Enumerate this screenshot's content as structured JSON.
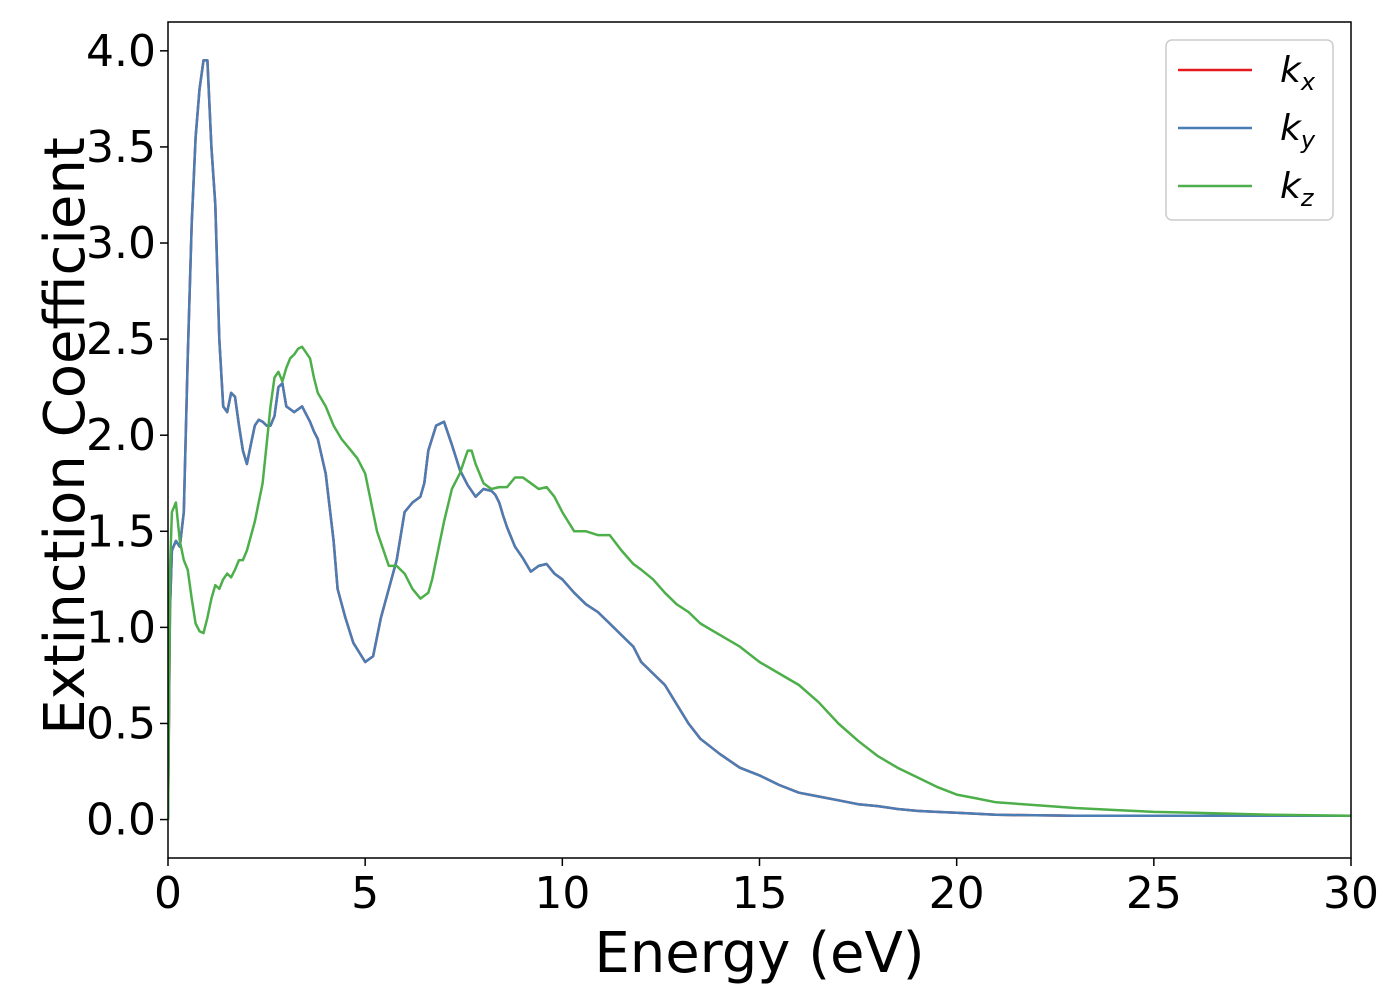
{
  "chart_data": {
    "type": "line",
    "xlabel": "Energy (eV)",
    "ylabel": "Extinction Coefficient",
    "xlim": [
      0,
      30
    ],
    "ylim": [
      -0.2,
      4.15
    ],
    "xticks": [
      0,
      5,
      10,
      15,
      20,
      25,
      30
    ],
    "xtick_labels": [
      "0",
      "5",
      "10",
      "15",
      "20",
      "25",
      "30"
    ],
    "yticks": [
      0.0,
      0.5,
      1.0,
      1.5,
      2.0,
      2.5,
      3.0,
      3.5,
      4.0
    ],
    "ytick_labels": [
      "0.0",
      "0.5",
      "1.0",
      "1.5",
      "2.0",
      "2.5",
      "3.0",
      "3.5",
      "4.0"
    ],
    "grid": false,
    "legend_position": "top-right",
    "series": [
      {
        "name": "k_x",
        "legend_base": "k",
        "legend_sub": "x",
        "color": "#e41a1c",
        "x": [
          0,
          0.05,
          0.1,
          0.2,
          0.3,
          0.4,
          0.5,
          0.6,
          0.7,
          0.8,
          0.9,
          1.0,
          1.1,
          1.2,
          1.3,
          1.4,
          1.5,
          1.6,
          1.7,
          1.8,
          1.9,
          2.0,
          2.1,
          2.2,
          2.3,
          2.4,
          2.5,
          2.6,
          2.7,
          2.8,
          2.9,
          3.0,
          3.2,
          3.4,
          3.6,
          3.7,
          3.8,
          4.0,
          4.2,
          4.3,
          4.5,
          4.7,
          5.0,
          5.2,
          5.4,
          5.6,
          5.8,
          6.0,
          6.2,
          6.4,
          6.5,
          6.6,
          6.8,
          7.0,
          7.2,
          7.4,
          7.6,
          7.8,
          8.0,
          8.2,
          8.3,
          8.4,
          8.5,
          8.6,
          8.8,
          9.0,
          9.2,
          9.4,
          9.6,
          9.8,
          10.0,
          10.3,
          10.6,
          10.9,
          11.2,
          11.5,
          11.8,
          12.0,
          12.3,
          12.6,
          12.9,
          13.2,
          13.5,
          14.0,
          14.5,
          15.0,
          15.5,
          16.0,
          16.5,
          17.0,
          17.5,
          18.0,
          18.5,
          19.0,
          19.5,
          20.0,
          20.5,
          21.0,
          22.0,
          23.0,
          24.0,
          25.0,
          26.0,
          27.0,
          28.0,
          29.0,
          30.0
        ],
        "y": [
          0,
          1.1,
          1.4,
          1.45,
          1.42,
          1.6,
          2.4,
          3.1,
          3.55,
          3.8,
          3.95,
          3.95,
          3.5,
          3.2,
          2.5,
          2.15,
          2.12,
          2.22,
          2.2,
          2.05,
          1.92,
          1.85,
          1.95,
          2.05,
          2.08,
          2.07,
          2.05,
          2.05,
          2.1,
          2.25,
          2.27,
          2.15,
          2.12,
          2.15,
          2.07,
          2.02,
          1.98,
          1.8,
          1.45,
          1.2,
          1.05,
          0.92,
          0.82,
          0.85,
          1.05,
          1.2,
          1.35,
          1.6,
          1.65,
          1.68,
          1.75,
          1.92,
          2.05,
          2.07,
          1.95,
          1.82,
          1.74,
          1.68,
          1.72,
          1.71,
          1.69,
          1.65,
          1.58,
          1.52,
          1.42,
          1.36,
          1.29,
          1.32,
          1.33,
          1.28,
          1.25,
          1.18,
          1.12,
          1.08,
          1.02,
          0.96,
          0.9,
          0.82,
          0.76,
          0.7,
          0.6,
          0.5,
          0.42,
          0.34,
          0.27,
          0.23,
          0.18,
          0.14,
          0.12,
          0.1,
          0.08,
          0.07,
          0.055,
          0.045,
          0.04,
          0.035,
          0.03,
          0.025,
          0.022,
          0.02,
          0.02,
          0.02,
          0.02,
          0.02,
          0.02,
          0.02,
          0.02
        ]
      },
      {
        "name": "k_y",
        "legend_base": "k",
        "legend_sub": "y",
        "color": "#4a7db3",
        "x": [
          0,
          0.05,
          0.1,
          0.2,
          0.3,
          0.4,
          0.5,
          0.6,
          0.7,
          0.8,
          0.9,
          1.0,
          1.1,
          1.2,
          1.3,
          1.4,
          1.5,
          1.6,
          1.7,
          1.8,
          1.9,
          2.0,
          2.1,
          2.2,
          2.3,
          2.4,
          2.5,
          2.6,
          2.7,
          2.8,
          2.9,
          3.0,
          3.2,
          3.4,
          3.6,
          3.7,
          3.8,
          4.0,
          4.2,
          4.3,
          4.5,
          4.7,
          5.0,
          5.2,
          5.4,
          5.6,
          5.8,
          6.0,
          6.2,
          6.4,
          6.5,
          6.6,
          6.8,
          7.0,
          7.2,
          7.4,
          7.6,
          7.8,
          8.0,
          8.2,
          8.3,
          8.4,
          8.5,
          8.6,
          8.8,
          9.0,
          9.2,
          9.4,
          9.6,
          9.8,
          10.0,
          10.3,
          10.6,
          10.9,
          11.2,
          11.5,
          11.8,
          12.0,
          12.3,
          12.6,
          12.9,
          13.2,
          13.5,
          14.0,
          14.5,
          15.0,
          15.5,
          16.0,
          16.5,
          17.0,
          17.5,
          18.0,
          18.5,
          19.0,
          19.5,
          20.0,
          20.5,
          21.0,
          22.0,
          23.0,
          24.0,
          25.0,
          26.0,
          27.0,
          28.0,
          29.0,
          30.0
        ],
        "y": [
          0,
          1.1,
          1.4,
          1.45,
          1.42,
          1.6,
          2.4,
          3.1,
          3.55,
          3.8,
          3.95,
          3.95,
          3.5,
          3.2,
          2.5,
          2.15,
          2.12,
          2.22,
          2.2,
          2.05,
          1.92,
          1.85,
          1.95,
          2.05,
          2.08,
          2.07,
          2.05,
          2.05,
          2.1,
          2.25,
          2.27,
          2.15,
          2.12,
          2.15,
          2.07,
          2.02,
          1.98,
          1.8,
          1.45,
          1.2,
          1.05,
          0.92,
          0.82,
          0.85,
          1.05,
          1.2,
          1.35,
          1.6,
          1.65,
          1.68,
          1.75,
          1.92,
          2.05,
          2.07,
          1.95,
          1.82,
          1.74,
          1.68,
          1.72,
          1.71,
          1.69,
          1.65,
          1.58,
          1.52,
          1.42,
          1.36,
          1.29,
          1.32,
          1.33,
          1.28,
          1.25,
          1.18,
          1.12,
          1.08,
          1.02,
          0.96,
          0.9,
          0.82,
          0.76,
          0.7,
          0.6,
          0.5,
          0.42,
          0.34,
          0.27,
          0.23,
          0.18,
          0.14,
          0.12,
          0.1,
          0.08,
          0.07,
          0.055,
          0.045,
          0.04,
          0.035,
          0.03,
          0.025,
          0.022,
          0.02,
          0.02,
          0.02,
          0.02,
          0.02,
          0.02,
          0.02,
          0.02
        ]
      },
      {
        "name": "k_z",
        "legend_base": "k",
        "legend_sub": "z",
        "color": "#4daf4a",
        "x": [
          0,
          0.05,
          0.1,
          0.2,
          0.3,
          0.4,
          0.5,
          0.6,
          0.7,
          0.8,
          0.9,
          1.0,
          1.1,
          1.2,
          1.3,
          1.4,
          1.5,
          1.6,
          1.7,
          1.8,
          1.9,
          2.0,
          2.2,
          2.4,
          2.5,
          2.6,
          2.7,
          2.8,
          2.9,
          3.0,
          3.1,
          3.2,
          3.3,
          3.4,
          3.6,
          3.7,
          3.8,
          4.0,
          4.2,
          4.4,
          4.6,
          4.8,
          5.0,
          5.3,
          5.6,
          5.8,
          6.0,
          6.2,
          6.4,
          6.6,
          6.7,
          6.8,
          7.0,
          7.2,
          7.4,
          7.6,
          7.7,
          7.8,
          8.0,
          8.2,
          8.4,
          8.6,
          8.8,
          9.0,
          9.2,
          9.4,
          9.6,
          9.8,
          10.0,
          10.3,
          10.6,
          10.9,
          11.2,
          11.5,
          11.8,
          12.0,
          12.3,
          12.6,
          12.9,
          13.2,
          13.5,
          14.0,
          14.5,
          15.0,
          15.5,
          16.0,
          16.5,
          17.0,
          17.5,
          18.0,
          18.5,
          19.0,
          19.5,
          20.0,
          20.5,
          21.0,
          22.0,
          23.0,
          24.0,
          25.0,
          26.0,
          27.0,
          28.0,
          29.0,
          30.0
        ],
        "y": [
          0,
          1.3,
          1.6,
          1.65,
          1.45,
          1.35,
          1.3,
          1.15,
          1.02,
          0.98,
          0.97,
          1.05,
          1.15,
          1.22,
          1.2,
          1.25,
          1.28,
          1.26,
          1.3,
          1.35,
          1.35,
          1.4,
          1.55,
          1.75,
          1.95,
          2.15,
          2.3,
          2.33,
          2.28,
          2.35,
          2.4,
          2.42,
          2.45,
          2.46,
          2.4,
          2.3,
          2.22,
          2.15,
          2.05,
          1.98,
          1.93,
          1.88,
          1.8,
          1.5,
          1.32,
          1.32,
          1.28,
          1.2,
          1.15,
          1.18,
          1.25,
          1.35,
          1.55,
          1.72,
          1.8,
          1.92,
          1.92,
          1.85,
          1.75,
          1.72,
          1.73,
          1.73,
          1.78,
          1.78,
          1.75,
          1.72,
          1.73,
          1.68,
          1.6,
          1.5,
          1.5,
          1.48,
          1.48,
          1.4,
          1.33,
          1.3,
          1.25,
          1.18,
          1.12,
          1.08,
          1.02,
          0.96,
          0.9,
          0.82,
          0.76,
          0.7,
          0.61,
          0.5,
          0.41,
          0.33,
          0.27,
          0.22,
          0.17,
          0.13,
          0.11,
          0.09,
          0.075,
          0.06,
          0.05,
          0.04,
          0.035,
          0.03,
          0.025,
          0.022,
          0.02
        ]
      }
    ]
  }
}
